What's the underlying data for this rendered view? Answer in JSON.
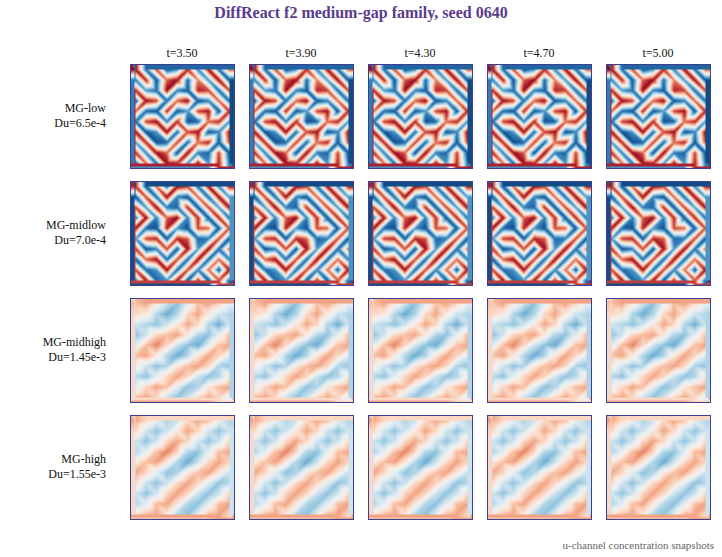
{
  "chart_data": {
    "type": "heatmap_grid",
    "title": "DiffReact f2 medium-gap family, seed 0640",
    "caption": "u-channel concentration snapshots",
    "column_labels": [
      "t=3.50",
      "t=3.90",
      "t=4.30",
      "t=4.70",
      "t=5.00"
    ],
    "color": "rdbu",
    "color_range": [
      -1,
      1
    ],
    "tick_labels": false,
    "rows": [
      {
        "name": "MG-low",
        "label": "Du=6.5e-4",
        "cells": [
          [
            0.9,
            -0.8,
            0.7,
            -0.9,
            -0.6,
            0.8,
            -0.7,
            0.9,
            -0.8,
            0.6
          ],
          [
            -0.7,
            0.8,
            -0.9,
            0.6,
            0.9,
            -0.8,
            0.5,
            -0.6,
            0.9,
            -0.9
          ],
          [
            0.8,
            -0.6,
            -0.8,
            0.9,
            -0.7,
            -0.9,
            0.8,
            0.7,
            -0.8,
            0.7
          ],
          [
            -0.9,
            0.9,
            0.7,
            -0.8,
            0.6,
            0.9,
            -0.9,
            -0.7,
            0.6,
            -0.8
          ],
          [
            0.6,
            -0.8,
            -0.9,
            0.8,
            -0.9,
            -0.6,
            0.7,
            0.9,
            -0.9,
            0.8
          ],
          [
            -0.8,
            0.7,
            0.9,
            -0.7,
            0.8,
            -0.9,
            -0.8,
            0.6,
            0.8,
            -0.6
          ],
          [
            0.9,
            -0.9,
            -0.6,
            0.9,
            -0.8,
            0.7,
            0.9,
            -0.9,
            -0.7,
            0.9
          ],
          [
            -0.6,
            0.8,
            -0.9,
            -0.8,
            0.7,
            -0.8,
            0.6,
            0.8,
            -0.9,
            0.7
          ],
          [
            0.8,
            -0.7,
            0.9,
            0.6,
            -0.9,
            0.9,
            -0.7,
            -0.8,
            0.7,
            -0.9
          ],
          [
            -0.9,
            0.6,
            -0.8,
            0.9,
            0.8,
            -0.6,
            0.9,
            -0.6,
            0.8,
            -0.7
          ]
        ]
      },
      {
        "name": "MG-midlow",
        "label": "Du=7.0e-4",
        "cells": [
          [
            0.8,
            -0.9,
            0.6,
            -0.8,
            0.9,
            0.7,
            -0.8,
            0.9,
            -0.7,
            0.8
          ],
          [
            -0.9,
            0.7,
            -0.8,
            0.9,
            -0.7,
            -0.9,
            0.6,
            -0.8,
            0.9,
            -0.6
          ],
          [
            0.7,
            -0.6,
            0.9,
            -0.7,
            -0.8,
            0.8,
            -0.9,
            0.7,
            -0.6,
            0.9
          ],
          [
            -0.8,
            0.9,
            -0.7,
            0.6,
            0.9,
            -0.7,
            0.8,
            -0.9,
            0.8,
            -0.8
          ],
          [
            0.9,
            -0.8,
            -0.9,
            0.8,
            -0.6,
            -0.9,
            0.7,
            0.6,
            -0.9,
            0.7
          ],
          [
            -0.6,
            0.7,
            0.8,
            -0.9,
            0.8,
            0.6,
            -0.8,
            -0.7,
            0.7,
            -0.9
          ],
          [
            0.8,
            -0.9,
            -0.7,
            0.7,
            -0.9,
            0.9,
            -0.6,
            0.9,
            -0.8,
            0.6
          ],
          [
            -0.9,
            0.6,
            0.9,
            -0.8,
            0.7,
            -0.8,
            0.9,
            -0.8,
            0.6,
            -0.7
          ],
          [
            0.7,
            -0.8,
            -0.6,
            0.9,
            -0.8,
            0.7,
            -0.7,
            0.6,
            -0.9,
            0.9
          ],
          [
            -0.8,
            0.9,
            -0.8,
            -0.6,
            0.9,
            -0.9,
            0.8,
            -0.9,
            0.7,
            -0.8
          ]
        ]
      },
      {
        "name": "MG-midhigh",
        "label": "Du=1.45e-3",
        "cells": [
          [
            0.3,
            0.4,
            0.1,
            -0.2,
            -0.4,
            -0.1,
            0.3,
            0.4,
            0.2,
            -0.1
          ],
          [
            0.2,
            0.1,
            -0.3,
            -0.5,
            -0.3,
            0.2,
            0.4,
            0.1,
            -0.2,
            -0.3
          ],
          [
            -0.2,
            -0.3,
            -0.4,
            -0.2,
            0.1,
            0.4,
            0.2,
            -0.3,
            -0.5,
            -0.2
          ],
          [
            -0.4,
            -0.2,
            0.2,
            0.3,
            0.4,
            0.1,
            -0.3,
            -0.4,
            -0.1,
            0.3
          ],
          [
            -0.1,
            0.3,
            0.5,
            0.2,
            -0.2,
            -0.4,
            -0.5,
            -0.1,
            0.3,
            0.4
          ],
          [
            0.3,
            0.4,
            0.1,
            -0.3,
            -0.5,
            -0.3,
            0.1,
            0.4,
            0.2,
            -0.1
          ],
          [
            0.1,
            -0.2,
            -0.4,
            -0.3,
            0.1,
            0.3,
            0.4,
            0.2,
            -0.3,
            -0.4
          ],
          [
            -0.3,
            -0.4,
            -0.1,
            0.2,
            0.4,
            0.2,
            -0.2,
            -0.4,
            -0.3,
            0.1
          ],
          [
            -0.1,
            0.2,
            0.4,
            0.3,
            -0.1,
            -0.4,
            -0.3,
            0.1,
            0.3,
            0.4
          ],
          [
            0.3,
            0.4,
            0.2,
            -0.2,
            -0.4,
            -0.2,
            0.2,
            0.4,
            0.2,
            -0.1
          ]
        ]
      },
      {
        "name": "MG-high",
        "label": "Du=1.55e-3",
        "cells": [
          [
            0.4,
            0.2,
            -0.1,
            -0.3,
            -0.2,
            0.2,
            0.4,
            0.3,
            -0.1,
            -0.3
          ],
          [
            0.2,
            -0.2,
            -0.4,
            -0.2,
            0.1,
            0.4,
            0.2,
            -0.2,
            -0.4,
            -0.2
          ],
          [
            -0.2,
            -0.4,
            -0.2,
            0.2,
            0.4,
            0.2,
            -0.2,
            -0.4,
            -0.2,
            0.2
          ],
          [
            -0.3,
            -0.1,
            0.3,
            0.5,
            0.2,
            -0.3,
            -0.4,
            -0.1,
            0.3,
            0.4
          ],
          [
            0.1,
            0.3,
            0.4,
            0.1,
            -0.3,
            -0.5,
            -0.2,
            0.2,
            0.4,
            0.2
          ],
          [
            0.4,
            0.2,
            -0.1,
            -0.4,
            -0.3,
            0.1,
            0.3,
            0.4,
            0.1,
            -0.2
          ],
          [
            0.2,
            -0.2,
            -0.4,
            -0.2,
            0.2,
            0.4,
            0.2,
            -0.1,
            -0.4,
            -0.3
          ],
          [
            -0.2,
            -0.4,
            -0.2,
            0.2,
            0.4,
            0.2,
            -0.2,
            -0.4,
            -0.2,
            0.2
          ],
          [
            -0.3,
            -0.1,
            0.3,
            0.4,
            0.1,
            -0.3,
            -0.4,
            -0.1,
            0.3,
            0.4
          ],
          [
            0.1,
            0.3,
            0.4,
            0.1,
            -0.3,
            -0.4,
            -0.1,
            0.3,
            0.4,
            0.2
          ]
        ]
      }
    ]
  }
}
